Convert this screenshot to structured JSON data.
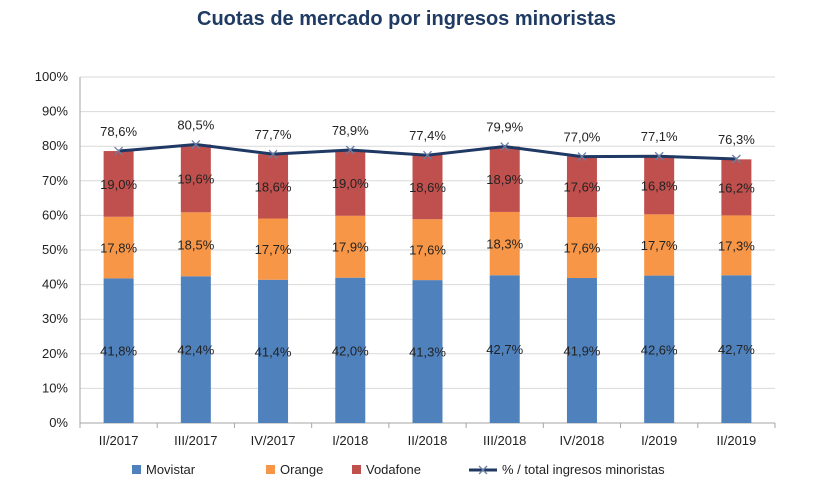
{
  "chart_data": {
    "type": "bar",
    "stacked": true,
    "title": "Cuotas de mercado por ingresos minoristas",
    "categories": [
      "II/2017",
      "III/2017",
      "IV/2017",
      "I/2018",
      "II/2018",
      "III/2018",
      "IV/2018",
      "I/2019",
      "II/2019"
    ],
    "y_ticks": [
      "0%",
      "10%",
      "20%",
      "30%",
      "40%",
      "50%",
      "60%",
      "70%",
      "80%",
      "90%",
      "100%"
    ],
    "ylim": [
      0,
      100
    ],
    "grid": true,
    "legend_position": "bottom",
    "series": [
      {
        "name": "Movistar",
        "type": "bar",
        "color": "#4f81bd",
        "values": [
          41.8,
          42.4,
          41.4,
          42.0,
          41.3,
          42.7,
          41.9,
          42.6,
          42.7
        ],
        "labels": [
          "41,8%",
          "42,4%",
          "41,4%",
          "42,0%",
          "41,3%",
          "42,7%",
          "41,9%",
          "42,6%",
          "42,7%"
        ]
      },
      {
        "name": "Orange",
        "type": "bar",
        "color": "#f79646",
        "values": [
          17.8,
          18.5,
          17.7,
          17.9,
          17.6,
          18.3,
          17.6,
          17.7,
          17.3
        ],
        "labels": [
          "17,8%",
          "18,5%",
          "17,7%",
          "17,9%",
          "17,6%",
          "18,3%",
          "17,6%",
          "17,7%",
          "17,3%"
        ]
      },
      {
        "name": "Vodafone",
        "type": "bar",
        "color": "#c0504d",
        "values": [
          19.0,
          19.6,
          18.6,
          19.0,
          18.6,
          18.9,
          17.6,
          16.8,
          16.2
        ],
        "labels": [
          "19,0%",
          "19,6%",
          "18,6%",
          "19,0%",
          "18,6%",
          "18,9%",
          "17,6%",
          "16,8%",
          "16,2%"
        ]
      },
      {
        "name": "% / total ingresos minoristas",
        "type": "line",
        "color": "#1f3864",
        "values": [
          78.6,
          80.5,
          77.7,
          78.9,
          77.4,
          79.9,
          77.0,
          77.1,
          76.3
        ],
        "labels": [
          "78,6%",
          "80,5%",
          "77,7%",
          "78,9%",
          "77,4%",
          "79,9%",
          "77,0%",
          "77,1%",
          "76,3%"
        ]
      }
    ]
  }
}
